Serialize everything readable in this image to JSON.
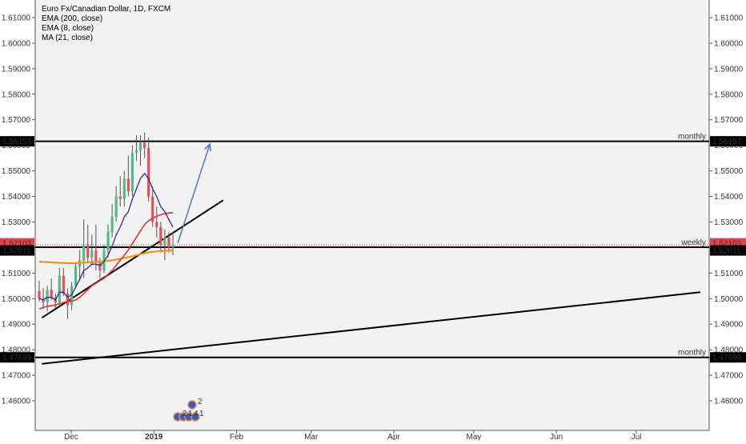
{
  "chart_data": {
    "type": "candlestick",
    "legend": {
      "title": "Euro Fx/Canadian Dollar, 1D, FXCM",
      "indicators": [
        "EMA (200, close)",
        "EMA (8, close)",
        "MA (21, close)"
      ]
    },
    "y_ticks": [
      "1.46000",
      "1.47000",
      "1.48000",
      "1.49000",
      "1.50000",
      "1.51000",
      "1.52000",
      "1.53000",
      "1.54000",
      "1.55000",
      "1.56000",
      "1.57000",
      "1.58000",
      "1.59000",
      "1.60000",
      "1.61000"
    ],
    "y_range": [
      1.4515,
      1.6155
    ],
    "x_ticks": [
      "Dec",
      "2019",
      "Feb",
      "Mar",
      "Apr",
      "May",
      "Jun",
      "Jul"
    ],
    "price_badges": [
      {
        "value": "1.56157",
        "style": "black"
      },
      {
        "value": "1.52103",
        "style": "red"
      },
      {
        "value": "1.52011",
        "style": "black"
      },
      {
        "value": "1.47699",
        "style": "black"
      }
    ],
    "horizontal_levels": [
      {
        "price": 1.56157,
        "label": "monthly"
      },
      {
        "price": 1.52011,
        "label": "weekly"
      },
      {
        "price": 1.47699,
        "label": "monthly"
      }
    ],
    "current_price": 1.52103,
    "trendlines": [
      {
        "from": [
          "2018-11-20",
          1.4925
        ],
        "to": [
          "2019-01-27",
          1.5385
        ]
      },
      {
        "from": [
          "2018-11-20",
          1.4745
        ],
        "to": [
          "2019-07-25",
          1.5025
        ]
      }
    ],
    "projection_arrow": {
      "from": [
        "2019-01-10",
        1.5218
      ],
      "to": [
        "2019-01-22",
        1.5605
      ]
    },
    "candles": [
      {
        "o": 1.503,
        "h": 1.507,
        "l": 1.499,
        "c": 1.5
      },
      {
        "o": 1.5,
        "h": 1.504,
        "l": 1.496,
        "c": 1.4985
      },
      {
        "o": 1.4985,
        "h": 1.505,
        "l": 1.495,
        "c": 1.5035
      },
      {
        "o": 1.5035,
        "h": 1.508,
        "l": 1.4995,
        "c": 1.5005
      },
      {
        "o": 1.5005,
        "h": 1.502,
        "l": 1.496,
        "c": 1.4985
      },
      {
        "o": 1.4985,
        "h": 1.512,
        "l": 1.4975,
        "c": 1.509
      },
      {
        "o": 1.509,
        "h": 1.512,
        "l": 1.501,
        "c": 1.502
      },
      {
        "o": 1.502,
        "h": 1.504,
        "l": 1.492,
        "c": 1.4975
      },
      {
        "o": 1.4975,
        "h": 1.5065,
        "l": 1.4955,
        "c": 1.505
      },
      {
        "o": 1.505,
        "h": 1.514,
        "l": 1.504,
        "c": 1.5125
      },
      {
        "o": 1.5125,
        "h": 1.519,
        "l": 1.507,
        "c": 1.515
      },
      {
        "o": 1.515,
        "h": 1.531,
        "l": 1.508,
        "c": 1.521
      },
      {
        "o": 1.521,
        "h": 1.529,
        "l": 1.514,
        "c": 1.516
      },
      {
        "o": 1.516,
        "h": 1.525,
        "l": 1.513,
        "c": 1.519
      },
      {
        "o": 1.519,
        "h": 1.529,
        "l": 1.511,
        "c": 1.514
      },
      {
        "o": 1.514,
        "h": 1.516,
        "l": 1.508,
        "c": 1.511
      },
      {
        "o": 1.511,
        "h": 1.521,
        "l": 1.51,
        "c": 1.519
      },
      {
        "o": 1.519,
        "h": 1.529,
        "l": 1.516,
        "c": 1.526
      },
      {
        "o": 1.526,
        "h": 1.537,
        "l": 1.524,
        "c": 1.532
      },
      {
        "o": 1.532,
        "h": 1.544,
        "l": 1.53,
        "c": 1.54
      },
      {
        "o": 1.54,
        "h": 1.548,
        "l": 1.536,
        "c": 1.539
      },
      {
        "o": 1.539,
        "h": 1.55,
        "l": 1.536,
        "c": 1.547
      },
      {
        "o": 1.547,
        "h": 1.556,
        "l": 1.54,
        "c": 1.542
      },
      {
        "o": 1.542,
        "h": 1.56,
        "l": 1.54,
        "c": 1.557
      },
      {
        "o": 1.557,
        "h": 1.564,
        "l": 1.554,
        "c": 1.558
      },
      {
        "o": 1.558,
        "h": 1.564,
        "l": 1.552,
        "c": 1.561
      },
      {
        "o": 1.561,
        "h": 1.565,
        "l": 1.555,
        "c": 1.559
      },
      {
        "o": 1.559,
        "h": 1.563,
        "l": 1.538,
        "c": 1.54
      },
      {
        "o": 1.54,
        "h": 1.544,
        "l": 1.528,
        "c": 1.53
      },
      {
        "o": 1.53,
        "h": 1.536,
        "l": 1.524,
        "c": 1.528
      },
      {
        "o": 1.528,
        "h": 1.53,
        "l": 1.518,
        "c": 1.521
      },
      {
        "o": 1.521,
        "h": 1.527,
        "l": 1.515,
        "c": 1.524
      },
      {
        "o": 1.524,
        "h": 1.526,
        "l": 1.518,
        "c": 1.52
      },
      {
        "o": 1.52,
        "h": 1.526,
        "l": 1.517,
        "c": 1.521
      }
    ],
    "ema8": [
      1.5,
      1.4995,
      1.5005,
      1.5005,
      1.4995,
      1.5025,
      1.5025,
      1.5005,
      1.5015,
      1.5045,
      1.5075,
      1.511,
      1.512,
      1.5135,
      1.5135,
      1.513,
      1.5145,
      1.517,
      1.5205,
      1.525,
      1.528,
      1.532,
      1.534,
      1.539,
      1.543,
      1.547,
      1.549,
      1.547,
      1.543,
      1.54,
      1.536,
      1.534,
      1.531,
      1.528
    ],
    "ma21": [
      1.496,
      1.4965,
      1.497,
      1.4972,
      1.4975,
      1.498,
      1.4985,
      1.4988,
      1.499,
      1.4995,
      1.5005,
      1.502,
      1.5035,
      1.505,
      1.506,
      1.507,
      1.508,
      1.5095,
      1.511,
      1.513,
      1.515,
      1.517,
      1.519,
      1.5215,
      1.524,
      1.5265,
      1.529,
      1.5305,
      1.5315,
      1.5322,
      1.5328,
      1.5332,
      1.5335,
      1.5337
    ],
    "ema200": [
      1.5145,
      1.5144,
      1.5143,
      1.5142,
      1.5141,
      1.514,
      1.514,
      1.5139,
      1.5139,
      1.5139,
      1.514,
      1.5141,
      1.5142,
      1.5143,
      1.5144,
      1.5145,
      1.5146,
      1.5148,
      1.515,
      1.5153,
      1.5156,
      1.5159,
      1.5162,
      1.5166,
      1.517,
      1.5174,
      1.5178,
      1.5181,
      1.5183,
      1.5185,
      1.5186,
      1.5187,
      1.5188,
      1.5189
    ],
    "event_markers": [
      "2",
      "2",
      "1",
      "4",
      "1"
    ],
    "colors": {
      "up": "#53b987",
      "down": "#eb4d5c",
      "ema8": "#2d2e8a",
      "ma21": "#e03030",
      "ema200": "#f0921e",
      "arrow": "#4a78c2",
      "current": "#e0434f",
      "background": "#f2f2f2"
    }
  }
}
